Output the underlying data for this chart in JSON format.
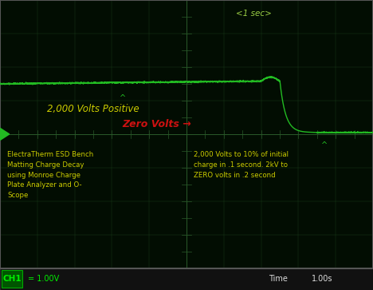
{
  "bg_color": "#1a1a1a",
  "screen_bg": "#020d02",
  "grid_color": "#1a3a1a",
  "grid_dot_color": "#223322",
  "waveform_color": "#22bb22",
  "text_yellow": "#cccc00",
  "text_red": "#cc1111",
  "text_green": "#99cc44",
  "text_white": "#dddddd",
  "bottom_bar_color": "#111111",
  "ch1_bg": "#005500",
  "ch1_text": "#00ee00",
  "figsize": [
    4.68,
    3.63
  ],
  "dpi": 100,
  "xlim": [
    0,
    10
  ],
  "ylim": [
    0,
    8
  ],
  "grid_cols": 10,
  "grid_rows": 8,
  "high_level": 5.5,
  "zero_level": 4.0,
  "decay_start_x": 7.5,
  "decay_end_x": 8.5,
  "label_1sec": "<1 sec>",
  "label_2000v": "2,000 Volts Positive",
  "label_zero": "Zero Volts",
  "label_arrow": " →",
  "label_left_text": "ElectraTherm ESD Bench\nMatting Charge Decay\nusing Monroe Charge\nPlate Analyzer and O-\nScope",
  "label_right_text": "2,000 Volts to 10% of initial\ncharge in .1 second. 2kV to\nZERO volts in .2 second",
  "bottom_ch1": "CH1",
  "bottom_ch1_val": "= 1.00V",
  "bottom_time": "Time",
  "bottom_time_val": "1.00s"
}
